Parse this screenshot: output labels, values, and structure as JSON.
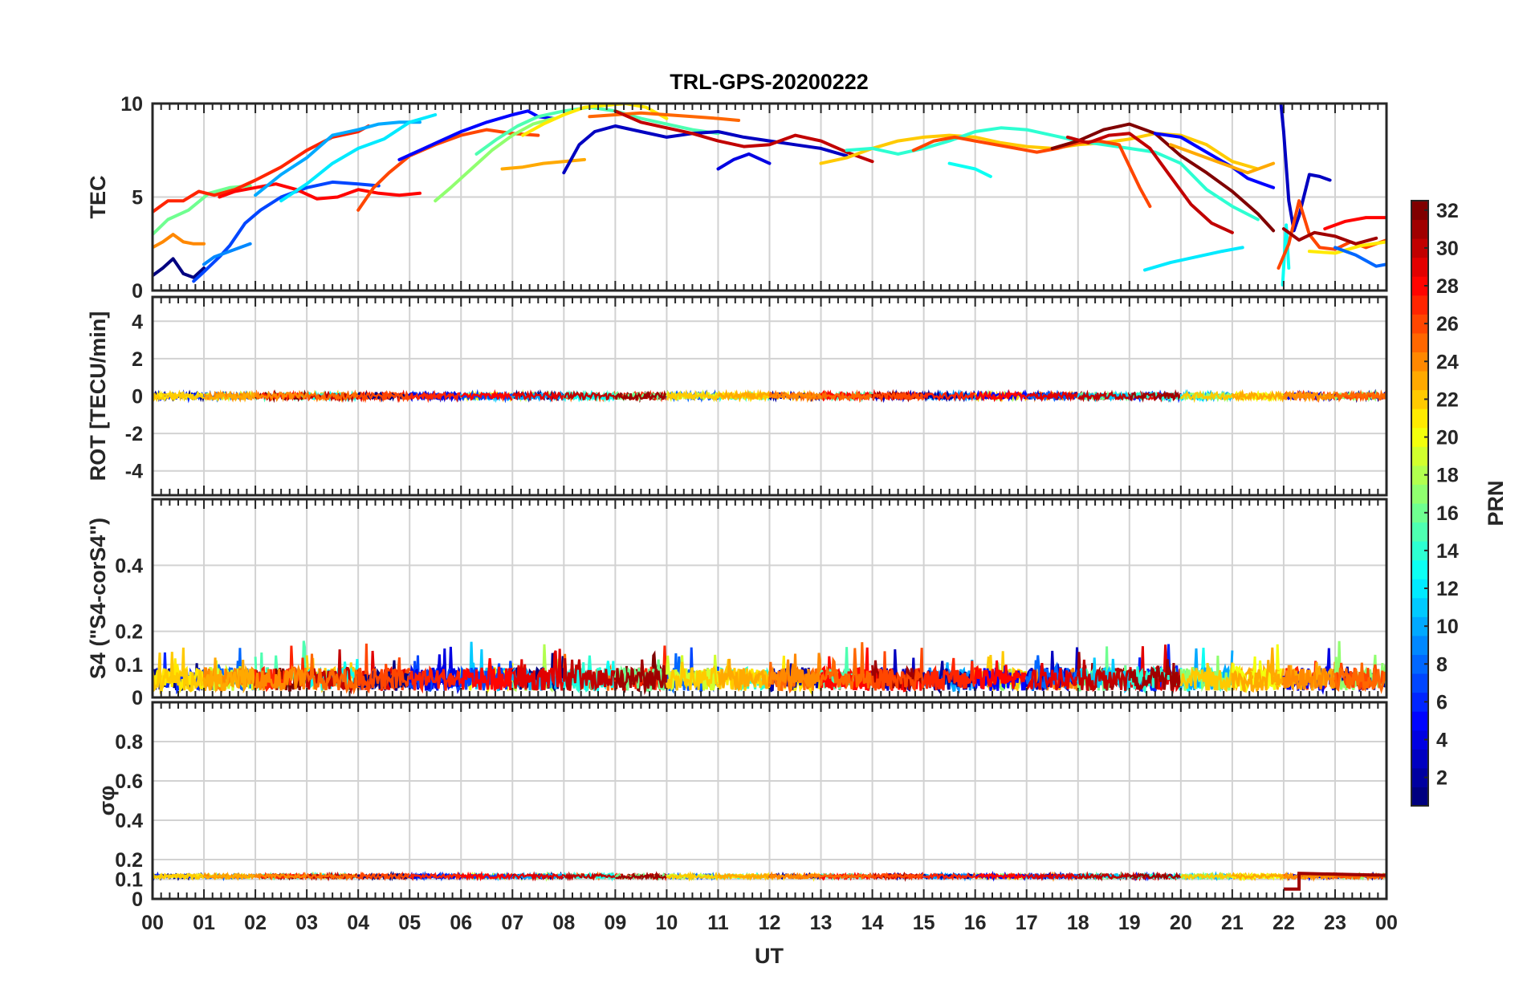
{
  "chart_data": {
    "type": "line",
    "title": "TRL-GPS-20200222",
    "xlabel": "UT",
    "x_ticks": [
      "00",
      "01",
      "02",
      "03",
      "04",
      "05",
      "06",
      "07",
      "08",
      "09",
      "10",
      "11",
      "12",
      "13",
      "14",
      "15",
      "16",
      "17",
      "18",
      "19",
      "20",
      "21",
      "22",
      "23",
      "00"
    ],
    "xlim": [
      0,
      24
    ],
    "grid": true,
    "colormap": "jet",
    "colorbar": {
      "label": "PRN",
      "range": [
        1,
        32
      ],
      "ticks": [
        "2",
        "4",
        "6",
        "8",
        "10",
        "12",
        "14",
        "16",
        "18",
        "20",
        "22",
        "24",
        "26",
        "28",
        "30",
        "32"
      ]
    },
    "panels": [
      {
        "ylabel": "TEC",
        "ylim": [
          0,
          10
        ],
        "y_ticks": [
          "0",
          "5",
          "10"
        ],
        "series": [
          {
            "prn": 1,
            "x": [
              0,
              0.2,
              0.4,
              0.6,
              0.8,
              1.0
            ],
            "y": [
              0.8,
              1.2,
              1.7,
              0.9,
              0.7,
              1.2
            ]
          },
          {
            "prn": 7,
            "x": [
              0.8,
              1.0,
              1.3,
              1.5,
              1.8,
              2.1,
              2.5,
              3.0,
              3.5,
              4.0,
              4.4
            ],
            "y": [
              0.5,
              1.0,
              1.8,
              2.4,
              3.6,
              4.3,
              5.0,
              5.5,
              5.8,
              5.7,
              5.6
            ]
          },
          {
            "prn": 9,
            "x": [
              1.0,
              1.2,
              1.5,
              1.9
            ],
            "y": [
              1.4,
              1.8,
              2.1,
              2.5
            ]
          },
          {
            "prn": 24,
            "x": [
              0,
              0.2,
              0.4,
              0.6,
              0.8,
              1.0
            ],
            "y": [
              2.3,
              2.6,
              3.0,
              2.6,
              2.5,
              2.5
            ]
          },
          {
            "prn": 16,
            "x": [
              0,
              0.3,
              0.7,
              1.1,
              1.5,
              1.9
            ],
            "y": [
              3.0,
              3.8,
              4.3,
              5.2,
              5.5,
              5.6
            ]
          },
          {
            "prn": 27,
            "x": [
              0,
              0.3,
              0.6,
              0.9,
              1.2,
              1.6,
              2.0,
              2.5,
              3.0,
              3.5,
              4.0,
              4.2
            ],
            "y": [
              4.2,
              4.8,
              4.8,
              5.3,
              5.1,
              5.4,
              5.9,
              6.6,
              7.5,
              8.2,
              8.5,
              8.8
            ]
          },
          {
            "prn": 28,
            "x": [
              1.3,
              1.6,
              2.0,
              2.4,
              2.8,
              3.2,
              3.6,
              4.0,
              4.4,
              4.8,
              5.2
            ],
            "y": [
              5.0,
              5.3,
              5.5,
              5.7,
              5.4,
              4.9,
              5.0,
              5.4,
              5.2,
              5.1,
              5.2
            ]
          },
          {
            "prn": 10,
            "x": [
              2.0,
              2.5,
              3.0,
              3.5,
              4.0,
              4.4,
              4.8,
              5.2
            ],
            "y": [
              5.1,
              6.2,
              7.1,
              8.3,
              8.6,
              8.9,
              9.0,
              9.0
            ]
          },
          {
            "prn": 12,
            "x": [
              2.5,
              3.0,
              3.5,
              4.0,
              4.5,
              5.0,
              5.5
            ],
            "y": [
              4.8,
              5.7,
              6.8,
              7.6,
              8.1,
              9.0,
              9.4
            ]
          },
          {
            "prn": 26,
            "x": [
              4.0,
              4.3,
              4.6,
              5.0,
              5.5,
              6.0,
              6.5,
              7.0,
              7.5
            ],
            "y": [
              4.3,
              5.5,
              6.3,
              7.2,
              7.8,
              8.3,
              8.6,
              8.4,
              8.3
            ]
          },
          {
            "prn": 5,
            "x": [
              4.8,
              5.2,
              5.6,
              6.0,
              6.5,
              7.0,
              7.3,
              7.5,
              7.8
            ],
            "y": [
              7.0,
              7.5,
              8.0,
              8.5,
              9.0,
              9.4,
              9.6,
              9.3,
              9.2
            ]
          },
          {
            "prn": 17,
            "x": [
              5.5,
              5.8,
              6.2,
              6.6,
              7.0,
              7.4,
              7.8
            ],
            "y": [
              4.8,
              5.5,
              6.5,
              7.5,
              8.3,
              8.9,
              9.2
            ]
          },
          {
            "prn": 15,
            "x": [
              6.3,
              6.7,
              7.1,
              7.5,
              8.0,
              8.5,
              9.0,
              9.5,
              10.0,
              10.5,
              11.0
            ],
            "y": [
              7.3,
              8.1,
              8.8,
              9.3,
              9.6,
              9.8,
              9.6,
              9.2,
              8.9,
              8.6,
              8.4
            ]
          },
          {
            "prn": 21,
            "x": [
              7.2,
              7.6,
              8.0,
              8.4,
              8.8,
              9.2,
              9.6,
              10.0
            ],
            "y": [
              8.3,
              8.9,
              9.4,
              9.8,
              9.9,
              10.0,
              9.8,
              9.2
            ]
          },
          {
            "prn": 23,
            "x": [
              6.8,
              7.2,
              7.6,
              8.0,
              8.4
            ],
            "y": [
              6.5,
              6.6,
              6.8,
              6.9,
              7.0
            ]
          },
          {
            "prn": 3,
            "x": [
              8.0,
              8.3,
              8.6,
              9.0,
              9.5,
              10.0,
              10.5,
              11.0,
              11.5,
              12.0,
              12.5,
              13.0,
              13.5
            ],
            "y": [
              6.3,
              7.8,
              8.5,
              8.8,
              8.5,
              8.2,
              8.4,
              8.5,
              8.2,
              8.0,
              7.8,
              7.6,
              7.2
            ]
          },
          {
            "prn": 25,
            "x": [
              8.5,
              9.0,
              9.5,
              10.0,
              10.5,
              11.0,
              11.4
            ],
            "y": [
              9.3,
              9.4,
              9.5,
              9.4,
              9.3,
              9.2,
              9.1
            ]
          },
          {
            "prn": 30,
            "x": [
              9.0,
              9.5,
              10.0,
              10.5,
              11.0,
              11.5,
              12.0,
              12.5,
              13.0,
              13.5,
              14.0
            ],
            "y": [
              9.6,
              9.0,
              8.7,
              8.4,
              8.0,
              7.7,
              7.8,
              8.3,
              8.0,
              7.4,
              6.9
            ]
          },
          {
            "prn": 4,
            "x": [
              11.0,
              11.3,
              11.6,
              12.0
            ],
            "y": [
              6.5,
              7.0,
              7.3,
              6.8
            ]
          },
          {
            "prn": 22,
            "x": [
              13.0,
              13.5,
              14.0,
              14.5,
              15.0,
              15.5,
              16.0,
              16.5,
              17.0,
              17.5,
              18.0,
              18.5,
              19.0,
              19.5,
              20.0,
              20.5,
              21.0,
              21.5
            ],
            "y": [
              6.8,
              7.1,
              7.6,
              8.0,
              8.2,
              8.3,
              8.2,
              7.9,
              7.7,
              7.6,
              7.8,
              7.9,
              8.1,
              8.4,
              8.3,
              7.8,
              6.9,
              6.5
            ]
          },
          {
            "prn": 14,
            "x": [
              13.5,
              14.0,
              14.5,
              15.0,
              15.5,
              16.0,
              16.5,
              17.0,
              17.5,
              18.0,
              18.5,
              19.0,
              19.5,
              20.0,
              20.5,
              21.0,
              21.5
            ],
            "y": [
              7.5,
              7.6,
              7.3,
              7.6,
              8.0,
              8.5,
              8.7,
              8.6,
              8.3,
              8.0,
              7.8,
              7.6,
              7.4,
              6.8,
              5.4,
              4.5,
              3.8
            ]
          },
          {
            "prn": 26,
            "x": [
              14.8,
              15.2,
              15.6,
              16.0,
              16.4,
              16.8,
              17.2,
              17.6,
              18.0,
              18.4,
              18.8,
              19.2,
              19.4
            ],
            "y": [
              7.5,
              8.0,
              8.2,
              8.0,
              7.8,
              7.6,
              7.4,
              7.6,
              7.9,
              8.0,
              7.8,
              5.5,
              4.5
            ]
          },
          {
            "prn": 13,
            "x": [
              15.5,
              16.0,
              16.3
            ],
            "y": [
              6.8,
              6.5,
              6.1
            ]
          },
          {
            "prn": 32,
            "x": [
              17.5,
              18.0,
              18.5,
              19.0,
              19.5,
              20.0,
              20.5,
              21.0,
              21.5,
              21.8
            ],
            "y": [
              7.6,
              8.0,
              8.6,
              8.9,
              8.4,
              7.2,
              6.3,
              5.3,
              4.1,
              3.2
            ]
          },
          {
            "prn": 30,
            "x": [
              17.8,
              18.2,
              18.6,
              19.0,
              19.4,
              19.8,
              20.2,
              20.6,
              21.0
            ],
            "y": [
              8.2,
              7.9,
              8.3,
              8.4,
              7.6,
              6.1,
              4.6,
              3.6,
              3.1
            ]
          },
          {
            "prn": 5,
            "x": [
              19.5,
              20.0,
              20.5,
              21.0,
              21.3,
              21.6,
              21.8
            ],
            "y": [
              8.4,
              8.2,
              7.4,
              6.6,
              6.0,
              5.7,
              5.5
            ]
          },
          {
            "prn": 23,
            "x": [
              19.8,
              20.3,
              20.8,
              21.3,
              21.8
            ],
            "y": [
              7.8,
              7.3,
              6.8,
              6.3,
              6.8
            ]
          },
          {
            "prn": 12,
            "x": [
              19.3,
              19.8,
              20.3,
              20.8,
              21.2
            ],
            "y": [
              1.1,
              1.5,
              1.8,
              2.1,
              2.3
            ]
          },
          {
            "prn": 3,
            "x": [
              21.95,
              22.0,
              22.1,
              22.2,
              22.3,
              22.5,
              22.7,
              22.9
            ],
            "y": [
              9.9,
              8.5,
              4.8,
              3.2,
              4.0,
              6.2,
              6.1,
              5.9
            ]
          },
          {
            "prn": 13,
            "x": [
              21.98,
              22.05,
              22.1
            ],
            "y": [
              0.3,
              3.5,
              1.2
            ]
          },
          {
            "prn": 26,
            "x": [
              21.9,
              22.1,
              22.3,
              22.5,
              22.7,
              23.0,
              23.3,
              23.6,
              24.0
            ],
            "y": [
              1.2,
              2.5,
              4.8,
              3.0,
              2.3,
              2.2,
              2.6,
              2.3,
              2.7
            ]
          },
          {
            "prn": 31,
            "x": [
              22.0,
              22.3,
              22.6,
              23.0,
              23.4,
              23.8
            ],
            "y": [
              3.3,
              2.7,
              3.1,
              2.9,
              2.5,
              2.8
            ]
          },
          {
            "prn": 28,
            "x": [
              22.8,
              23.2,
              23.6,
              24.0
            ],
            "y": [
              3.3,
              3.7,
              3.9,
              3.9
            ]
          },
          {
            "prn": 21,
            "x": [
              22.5,
              23.0,
              23.5,
              24.0
            ],
            "y": [
              2.1,
              2.0,
              2.4,
              2.6
            ]
          },
          {
            "prn": 8,
            "x": [
              23.0,
              23.4,
              23.8,
              24.0
            ],
            "y": [
              2.3,
              1.9,
              1.3,
              1.4
            ]
          }
        ]
      },
      {
        "ylabel": "ROT [TECU/min]",
        "ylim": [
          -5.3,
          5.3
        ],
        "y_ticks": [
          "-4",
          "-2",
          "0",
          "2",
          "4"
        ],
        "series_note": "all PRNs near 0 TECU/min"
      },
      {
        "ylabel": "S4 (\"S4-corS4\")",
        "ylim": [
          0,
          0.6
        ],
        "y_ticks": [
          "0",
          "0.1",
          "0.2",
          "0.4"
        ],
        "series_note": "all PRNs between 0 and 0.2"
      },
      {
        "ylabel": "σφ",
        "ylim": [
          0,
          1
        ],
        "y_ticks": [
          "0",
          "0.1",
          "0.2",
          "0.4",
          "0.6",
          "0.8"
        ],
        "series_note": "all PRNs near 0.12; PRN 31 near 0.05 from 22.0 to 22.3 UT"
      }
    ]
  }
}
